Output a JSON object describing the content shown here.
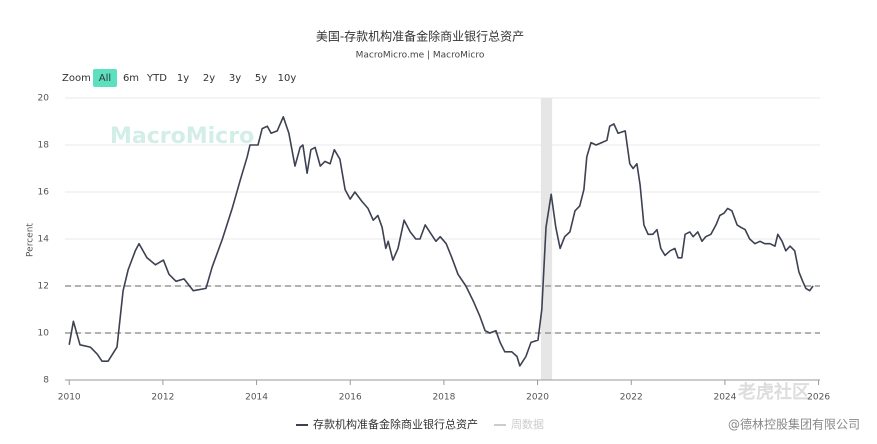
{
  "chart_data": {
    "type": "line",
    "title": "美国-存款机构准备金除商业银行总资产",
    "subtitle": "MacroMicro.me | MacroMicro",
    "y_label": "Percent",
    "x": [
      2010.0,
      2010.09,
      2010.23,
      2010.45,
      2010.6,
      2010.7,
      2010.83,
      2011.02,
      2011.15,
      2011.26,
      2011.41,
      2011.49,
      2011.66,
      2011.84,
      2012.01,
      2012.13,
      2012.28,
      2012.45,
      2012.65,
      2012.92,
      2013.05,
      2013.27,
      2013.48,
      2013.65,
      2013.8,
      2013.86,
      2014.03,
      2014.12,
      2014.23,
      2014.31,
      2014.44,
      2014.57,
      2014.69,
      2014.82,
      2014.93,
      2014.99,
      2015.08,
      2015.16,
      2015.25,
      2015.36,
      2015.46,
      2015.57,
      2015.66,
      2015.78,
      2015.89,
      2016.0,
      2016.1,
      2016.25,
      2016.38,
      2016.49,
      2016.59,
      2016.68,
      2016.76,
      2016.81,
      2016.91,
      2017.02,
      2017.15,
      2017.28,
      2017.4,
      2017.49,
      2017.6,
      2017.73,
      2017.83,
      2017.92,
      2018.05,
      2018.17,
      2018.3,
      2018.47,
      2018.64,
      2018.77,
      2018.88,
      2018.98,
      2019.11,
      2019.2,
      2019.3,
      2019.45,
      2019.56,
      2019.62,
      2019.75,
      2019.86,
      2020.01,
      2020.09,
      2020.18,
      2020.29,
      2020.39,
      2020.48,
      2020.58,
      2020.69,
      2020.8,
      2020.9,
      2020.99,
      2021.05,
      2021.14,
      2021.25,
      2021.37,
      2021.48,
      2021.54,
      2021.63,
      2021.72,
      2021.87,
      2021.97,
      2022.04,
      2022.12,
      2022.19,
      2022.27,
      2022.36,
      2022.46,
      2022.55,
      2022.63,
      2022.72,
      2022.83,
      2022.93,
      2023.0,
      2023.08,
      2023.15,
      2023.25,
      2023.32,
      2023.42,
      2023.51,
      2023.59,
      2023.7,
      2023.81,
      2023.89,
      2023.98,
      2024.06,
      2024.15,
      2024.26,
      2024.34,
      2024.43,
      2024.53,
      2024.64,
      2024.75,
      2024.85,
      2024.96,
      2025.07,
      2025.13,
      2025.22,
      2025.3,
      2025.39,
      2025.49,
      2025.58,
      2025.66,
      2025.73,
      2025.81,
      2025.88
    ],
    "series": [
      {
        "name": "存款机构准备金除商业银行总资产",
        "color": "#3d4152",
        "values": [
          9.5,
          10.5,
          9.5,
          9.4,
          9.1,
          8.8,
          8.8,
          9.4,
          11.8,
          12.7,
          13.5,
          13.8,
          13.2,
          12.9,
          13.1,
          12.5,
          12.2,
          12.3,
          11.8,
          11.9,
          12.8,
          14.0,
          15.3,
          16.5,
          17.5,
          18.0,
          18.0,
          18.7,
          18.8,
          18.5,
          18.6,
          19.2,
          18.5,
          17.1,
          17.9,
          18.0,
          16.8,
          17.8,
          17.9,
          17.1,
          17.3,
          17.2,
          17.8,
          17.4,
          16.1,
          15.7,
          16.0,
          15.6,
          15.3,
          14.8,
          15.0,
          14.5,
          13.6,
          13.9,
          13.1,
          13.6,
          14.8,
          14.3,
          14.0,
          14.0,
          14.6,
          14.2,
          13.9,
          14.1,
          13.8,
          13.2,
          12.5,
          12.0,
          11.3,
          10.7,
          10.1,
          10.0,
          10.1,
          9.6,
          9.2,
          9.2,
          9.0,
          8.6,
          9.0,
          9.6,
          9.7,
          11.0,
          14.5,
          15.9,
          14.5,
          13.6,
          14.1,
          14.3,
          15.2,
          15.4,
          16.1,
          17.5,
          18.1,
          18.0,
          18.1,
          18.2,
          18.8,
          18.9,
          18.5,
          18.6,
          17.2,
          17.0,
          17.2,
          16.3,
          14.6,
          14.2,
          14.2,
          14.4,
          13.6,
          13.3,
          13.5,
          13.6,
          13.2,
          13.2,
          14.2,
          14.3,
          14.1,
          14.3,
          13.9,
          14.1,
          14.2,
          14.6,
          15.0,
          15.1,
          15.3,
          15.2,
          14.6,
          14.5,
          14.4,
          14.0,
          13.8,
          13.9,
          13.8,
          13.8,
          13.7,
          14.2,
          13.9,
          13.5,
          13.7,
          13.5,
          12.6,
          12.2,
          11.9,
          11.8,
          12.0
        ]
      }
    ],
    "hidden_series": [
      {
        "name": "周数据",
        "color": "#cccccc"
      }
    ],
    "shaded_range": [
      2020.07,
      2020.31
    ],
    "reference_lines": [
      12,
      10
    ],
    "xlim": [
      2009.91,
      2026.03
    ],
    "xticks": [
      2010,
      2012,
      2014,
      2016,
      2018,
      2020,
      2022,
      2024,
      2026
    ],
    "ylim": [
      8,
      20
    ],
    "yticks": [
      8,
      10,
      12,
      14,
      16,
      18,
      20
    ],
    "grid": true
  },
  "range_selector": {
    "label": "Zoom",
    "buttons": [
      "All",
      "6m",
      "YTD",
      "1y",
      "2y",
      "3y",
      "5y",
      "10y"
    ],
    "selected": 0
  },
  "watermark": "MacroMicro",
  "footer_watermark": "老虎社区",
  "footer_credit": "@德林控股集团有限公司"
}
